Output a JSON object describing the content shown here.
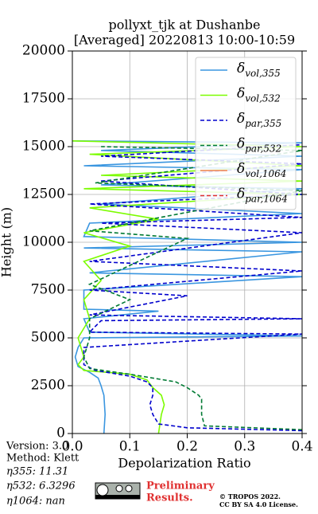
{
  "chart_data": {
    "type": "profile",
    "title": "pollyxt_tjk at Dushanbe",
    "subtitle": "[Averaged] 20220813 10:00-10:59",
    "x_label": "Depolarization Ratio",
    "y_label": "Height (m)",
    "xlim": [
      0,
      0.4
    ],
    "xticks": [
      {
        "value": 0,
        "label": "0.0"
      },
      0.1,
      0.2,
      0.3,
      0.4
    ],
    "ylim": [
      0,
      20000
    ],
    "yticks": [
      0,
      2500,
      5000,
      7500,
      10000,
      12500,
      15000,
      17500,
      20000
    ],
    "grid": true,
    "legend": "upper right",
    "series": [
      {
        "name": "δvol,355",
        "color": "#3a96e0",
        "linestyle": "solid",
        "x": [
          0.055,
          0.057,
          0.055,
          0.05,
          0.045,
          0.03,
          0.01,
          0.005,
          0.01,
          0.02,
          0.4,
          0.03,
          0.02,
          0.15,
          0.02,
          0.02,
          0.4,
          0.03,
          0.4,
          0.02,
          0.4,
          0.02,
          0.03,
          0.4,
          0.05,
          0.4,
          0.05,
          0.4,
          0.02,
          0.4,
          0.05,
          0.4,
          0.0
        ],
        "y": [
          0,
          1000,
          2000,
          2500,
          2900,
          3200,
          3500,
          4000,
          4500,
          5000,
          5100,
          5300,
          6000,
          6400,
          6500,
          7500,
          8200,
          8400,
          9500,
          9700,
          10000,
          10300,
          11000,
          11500,
          12000,
          12800,
          13000,
          13800,
          14000,
          14500,
          14800,
          15200,
          15300
        ]
      },
      {
        "name": "δvol,532",
        "color": "#7cfc00",
        "linestyle": "solid",
        "x": [
          0.15,
          0.155,
          0.16,
          0.155,
          0.14,
          0.13,
          0.1,
          0.02,
          0.01,
          0.02,
          0.01,
          0.03,
          0.02,
          0.05,
          0.02,
          0.1,
          0.02,
          0.15,
          0.03,
          0.4,
          0.02,
          0.4,
          0.05,
          0.4,
          0.03,
          0.4,
          0.0
        ],
        "y": [
          0,
          1000,
          1500,
          2000,
          2400,
          2800,
          3100,
          3300,
          3600,
          4000,
          5000,
          6000,
          7000,
          8000,
          9000,
          9800,
          10500,
          11200,
          11800,
          12500,
          12800,
          13200,
          13500,
          14000,
          14600,
          15000,
          15300
        ]
      },
      {
        "name": "δpar,355",
        "color": "#0000cd",
        "linestyle": "dashed",
        "x": [
          0.4,
          0.2,
          0.15,
          0.14,
          0.135,
          0.14,
          0.14,
          0.13,
          0.1,
          0.04,
          0.02,
          0.02,
          0.4,
          0.03,
          0.05,
          0.4,
          0.03,
          0.2,
          0.03,
          0.4,
          0.03,
          0.4,
          0.05,
          0.4,
          0.03,
          0.4,
          0.05,
          0.4,
          0.05,
          0.4
        ],
        "y": [
          150,
          300,
          500,
          1000,
          1500,
          2000,
          2400,
          2700,
          3000,
          3300,
          3600,
          4500,
          5200,
          5300,
          5900,
          6000,
          6200,
          7200,
          7500,
          8500,
          9000,
          10500,
          11000,
          11300,
          12000,
          12500,
          13200,
          14100,
          14500,
          15100
        ]
      },
      {
        "name": "δpar,532",
        "color": "#007a33",
        "linestyle": "dashed",
        "x": [
          0.4,
          0.23,
          0.225,
          0.225,
          0.22,
          0.2,
          0.18,
          0.1,
          0.03,
          0.02,
          0.03,
          0.03,
          0.1,
          0.03,
          0.2,
          0.03,
          0.4,
          0.04,
          0.4,
          0.05
        ],
        "y": [
          200,
          400,
          1000,
          1800,
          2000,
          2400,
          2700,
          3100,
          3400,
          4000,
          5000,
          6000,
          7000,
          7800,
          10200,
          10600,
          12700,
          13100,
          14800,
          15000
        ]
      },
      {
        "name": "δvol,1064",
        "color": "#f08050",
        "linestyle": "solid",
        "x": [],
        "y": []
      },
      {
        "name": "δpar,1064",
        "color": "#e03030",
        "linestyle": "dashed",
        "x": [],
        "y": []
      }
    ]
  },
  "footer": {
    "version": "Version: 3.0",
    "method": "Method: Klett",
    "eta355": "η355:  11.31",
    "eta532": "η532: 6.3296",
    "eta1064": "η1064:    nan",
    "preliminary": [
      "Preliminary",
      "Results."
    ],
    "copyright": [
      "© TROPOS 2022.",
      "CC BY SA 4.0 License."
    ]
  }
}
